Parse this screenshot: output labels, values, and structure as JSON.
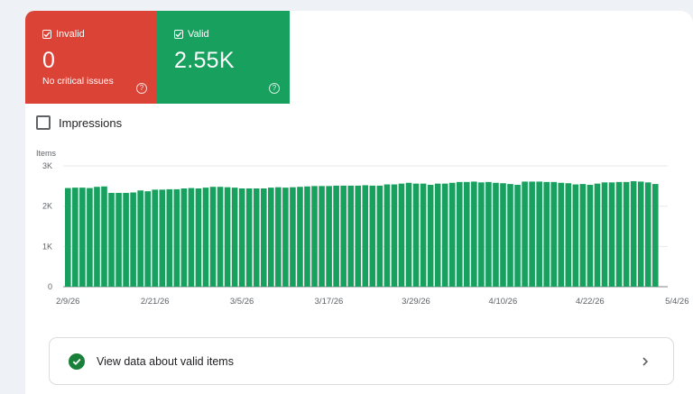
{
  "tiles": {
    "invalid": {
      "label": "Invalid",
      "value": "0",
      "sub": "No critical issues",
      "color": "#dc4337"
    },
    "valid": {
      "label": "Valid",
      "value": "2.55K",
      "color": "#17a05e"
    }
  },
  "impressions": {
    "label": "Impressions",
    "checked": false
  },
  "chart_data": {
    "type": "bar",
    "ylabel": "Items",
    "ylim": [
      0,
      3000
    ],
    "y_ticks": [
      "0",
      "1K",
      "2K",
      "3K"
    ],
    "x_tick_labels": [
      "2/9/26",
      "2/21/26",
      "3/5/26",
      "3/17/26",
      "3/29/26",
      "4/10/26",
      "4/22/26",
      "5/4/26"
    ],
    "bar_color": "#17a05e",
    "grid": true,
    "values": [
      2450,
      2460,
      2460,
      2450,
      2480,
      2490,
      2330,
      2330,
      2330,
      2340,
      2390,
      2370,
      2410,
      2410,
      2420,
      2420,
      2440,
      2450,
      2440,
      2460,
      2480,
      2480,
      2470,
      2460,
      2440,
      2440,
      2440,
      2440,
      2460,
      2470,
      2460,
      2470,
      2480,
      2490,
      2500,
      2500,
      2500,
      2510,
      2510,
      2510,
      2510,
      2520,
      2510,
      2510,
      2540,
      2540,
      2560,
      2580,
      2560,
      2560,
      2530,
      2560,
      2560,
      2580,
      2600,
      2600,
      2610,
      2590,
      2600,
      2580,
      2570,
      2550,
      2530,
      2610,
      2610,
      2610,
      2600,
      2600,
      2580,
      2570,
      2540,
      2550,
      2530,
      2560,
      2590,
      2590,
      2600,
      2600,
      2620,
      2610,
      2590,
      2550
    ]
  },
  "action": {
    "label": "View data about valid items"
  }
}
